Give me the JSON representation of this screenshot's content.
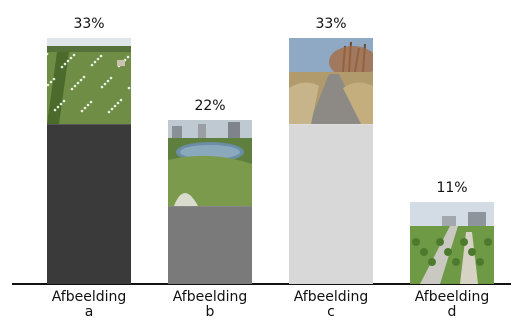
{
  "chart_data": {
    "type": "bar",
    "categories": [
      "Afbeelding a",
      "Afbeelding b",
      "Afbeelding c",
      "Afbeelding d"
    ],
    "category_lines": [
      [
        "Afbeelding",
        "a"
      ],
      [
        "Afbeelding",
        "b"
      ],
      [
        "Afbeelding",
        "c"
      ],
      [
        "Afbeelding",
        "d"
      ]
    ],
    "values": [
      33,
      22,
      33,
      11
    ],
    "value_labels": [
      "33%",
      "22%",
      "33%",
      "11%"
    ],
    "colors": [
      "#3a3a3a",
      "#7a7a7a",
      "#d8d8d8",
      "#e63946"
    ],
    "images": [
      "meadow-photo",
      "pond-photo",
      "path-photo",
      "park-photo"
    ],
    "ylim": [
      0,
      40
    ],
    "grid": false,
    "legend": "none"
  }
}
